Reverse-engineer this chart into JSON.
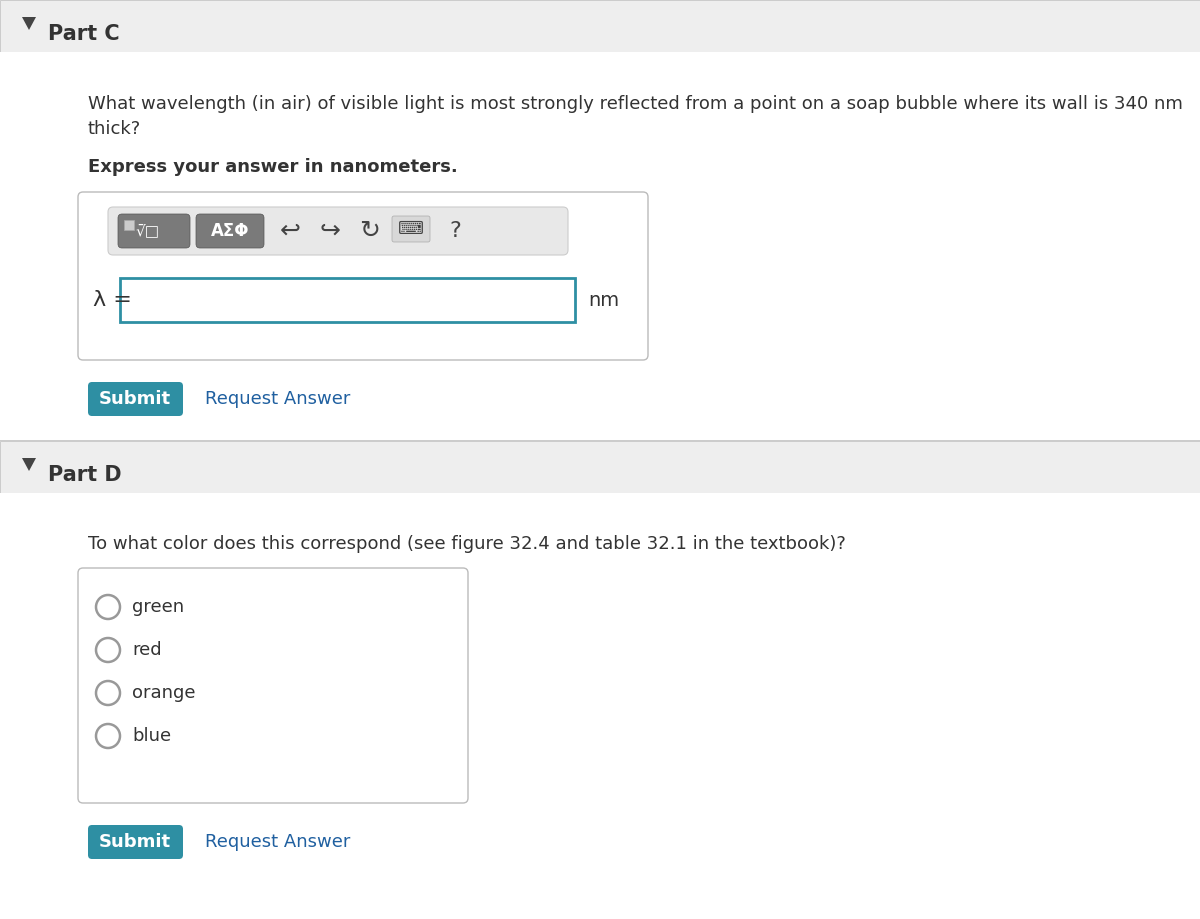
{
  "bg_color": "#f5f5f5",
  "white": "#ffffff",
  "part_c_header": "Part C",
  "part_d_header": "Part D",
  "question_c_line1": "What wavelength (in air) of visible light is most strongly reflected from a point on a soap bubble where its wall is 340 nm",
  "question_c_line2": "thick?",
  "bold_instruction": "Express your answer in nanometers.",
  "lambda_label": "λ =",
  "nm_label": "nm",
  "submit_color": "#2e8fa3",
  "submit_text": "Submit",
  "request_answer_text": "Request Answer",
  "request_answer_color": "#2060a0",
  "question_d": "To what color does this correspond (see figure 32.4 and table 32.1 in the textbook)?",
  "choices": [
    "green",
    "red",
    "orange",
    "blue"
  ],
  "input_border_color": "#2e8fa3",
  "section_header_bg": "#eeeeee",
  "panel_border": "#bbbbbb",
  "text_color": "#333333",
  "toolbar_btn_color": "#7a7a7a",
  "toolbar_bg": "#e8e8e8",
  "toolbar_border": "#cccccc"
}
